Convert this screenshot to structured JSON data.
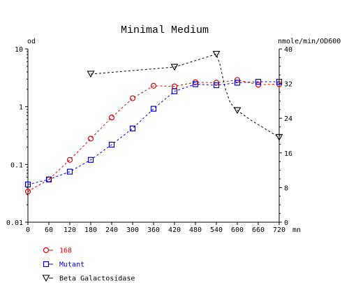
{
  "chart_data": {
    "type": "line",
    "title": "Minimal Medium",
    "left_axis_label": "od",
    "right_axis_label": "nmole/min/OD600",
    "x_unit": "mn",
    "x_ticks": [
      "0",
      "60",
      "120",
      "180",
      "240",
      "300",
      "360",
      "420",
      "480",
      "540",
      "600",
      "660",
      "720"
    ],
    "xlim": [
      0,
      720
    ],
    "left_scale": "log",
    "left_ylim": [
      0.01,
      10
    ],
    "left_ticks": [
      "0.01",
      "0.1",
      "1",
      "10"
    ],
    "right_ylim": [
      0,
      40
    ],
    "right_ticks": [
      "0",
      "8",
      "16",
      "24",
      "32",
      "40"
    ],
    "grid": false,
    "legend_position": "bottom-left",
    "series": [
      {
        "name": "168",
        "axis": "left",
        "color": "#e00000",
        "marker": "circle",
        "x": [
          0,
          60,
          120,
          180,
          240,
          300,
          360,
          420,
          480,
          540,
          600,
          660,
          720
        ],
        "y": [
          0.034,
          0.055,
          0.12,
          0.28,
          0.65,
          1.4,
          2.3,
          2.25,
          2.65,
          2.6,
          2.9,
          2.4,
          2.45
        ]
      },
      {
        "name": "Mutant",
        "axis": "left",
        "color": "#0000cc",
        "marker": "square",
        "x": [
          0,
          60,
          120,
          180,
          240,
          300,
          360,
          420,
          480,
          540,
          600,
          660,
          720
        ],
        "y": [
          0.045,
          0.055,
          0.075,
          0.12,
          0.22,
          0.42,
          0.92,
          1.85,
          2.45,
          2.35,
          2.6,
          2.7,
          2.7
        ]
      },
      {
        "name": "Beta Galactosidase",
        "axis": "right",
        "color": "#000000",
        "marker": "triangle-down",
        "x": [
          180,
          420,
          540,
          600,
          720
        ],
        "y": [
          34.2,
          35.8,
          38.8,
          25.8,
          19.6
        ],
        "x_curve": [
          180,
          420,
          540,
          550,
          565,
          580,
          600,
          640,
          720
        ],
        "y_curve": [
          34.2,
          35.8,
          38.8,
          36.5,
          31,
          27.5,
          25.8,
          23.5,
          19.6
        ]
      }
    ]
  },
  "colors": {
    "series_168": "#e00000",
    "series_mutant": "#0000cc",
    "series_beta": "#000000"
  }
}
